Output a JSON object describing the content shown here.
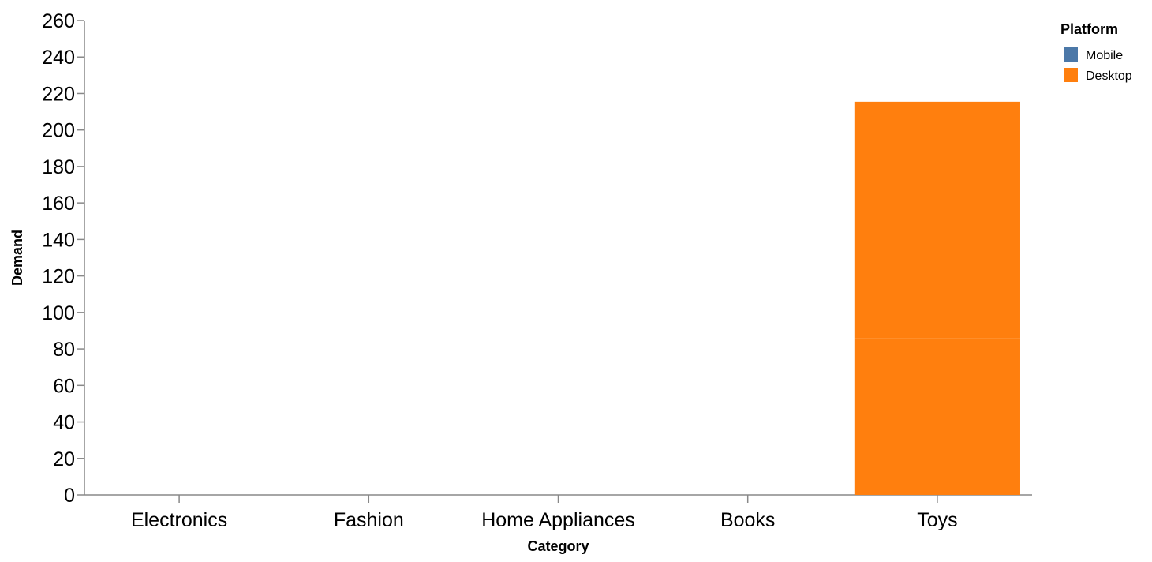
{
  "chart_data": {
    "type": "bar",
    "stacked": true,
    "xlabel": "Category",
    "ylabel": "Demand",
    "categories": [
      "Electronics",
      "Fashion",
      "Home Appliances",
      "Books",
      "Toys"
    ],
    "ylim": [
      0,
      260
    ],
    "yticks": [
      0,
      20,
      40,
      60,
      80,
      100,
      120,
      140,
      160,
      180,
      200,
      220,
      240,
      260
    ],
    "grid": false,
    "legend": {
      "title": "Platform",
      "placement": "top-right"
    },
    "series": [
      {
        "name": "Mobile",
        "color": "#4c78a8",
        "values": [
          0,
          0,
          0,
          0,
          0
        ]
      },
      {
        "name": "Desktop",
        "color": "#ff7f0e",
        "segments": [
          {
            "category": "Toys",
            "value": 86
          },
          {
            "category": "Toys",
            "value": 129.5
          }
        ]
      }
    ]
  }
}
